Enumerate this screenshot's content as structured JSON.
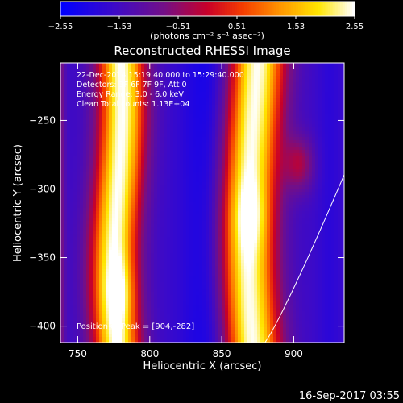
{
  "chart_data": {
    "type": "heatmap",
    "title": "Reconstructed RHESSI Image",
    "xlabel": "Heliocentric X (arcsec)",
    "ylabel": "Heliocentric Y (arcsec)",
    "xlim": [
      738,
      935
    ],
    "ylim": [
      -412,
      -208
    ],
    "x_ticks": [
      750,
      800,
      850,
      900
    ],
    "y_ticks": [
      -250,
      -300,
      -350,
      -400
    ],
    "x_tick_labels": [
      "750",
      "800",
      "850",
      "900"
    ],
    "y_tick_labels": [
      "−250",
      "−300",
      "−350",
      "−400"
    ],
    "colorbar": {
      "range": [
        -2.55,
        2.55
      ],
      "ticks": [
        -2.55,
        -1.53,
        -0.51,
        0.51,
        1.53,
        2.55
      ],
      "tick_labels": [
        "−2.55",
        "−1.53",
        "−0.51",
        "0.51",
        "1.53",
        "2.55"
      ],
      "units": "(photons cm⁻² s⁻¹ asec⁻²)",
      "colormap": "blue-purple-red-yellow-white"
    },
    "annotations": [
      "22-Dec-2014 15:19:40.000 to 15:29:40.000",
      "Detectors: 3F 6F 7F 9F, Att 0",
      "Energy Range: 3.0 - 6.0 keV",
      "Clean   Total counts: 1.13E+04"
    ],
    "peak_label": "Position of Peak = [904,-282]",
    "peak": [
      904,
      -282
    ],
    "footer": "16-Sep-2017 03:55",
    "grid": false,
    "bands": {
      "description": "vertical stripe pattern in intensity",
      "stripe_centers_x": [
        778,
        870
      ],
      "trough_centers_x": [
        740,
        840,
        925
      ]
    }
  }
}
